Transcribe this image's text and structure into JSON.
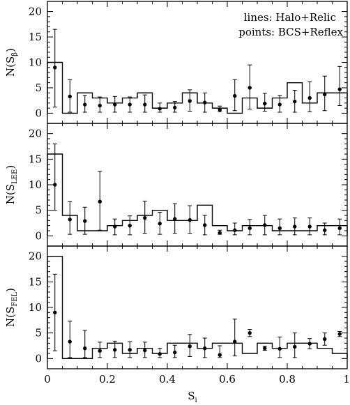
{
  "chart_data": {
    "type": "line",
    "xlabel_main": "S",
    "xlabel_sub": "i",
    "xlim": [
      0,
      1
    ],
    "x_ticks": [
      0,
      0.2,
      0.4,
      0.6,
      0.8,
      1
    ],
    "x_tick_labels": [
      "0",
      "0.2",
      "0.4",
      "0.6",
      "0.8",
      "1"
    ],
    "legend": {
      "lines_label": "lines: Halo+Relic",
      "points_label": "points: BCS+Reflex",
      "placement": "top-right of top panel"
    },
    "panels": [
      {
        "ylabel_main": "N(S",
        "ylabel_sub": "β",
        "ylabel_close": ")",
        "ylim": [
          -2,
          22
        ],
        "y_ticks": [
          0,
          5,
          10,
          15,
          20
        ],
        "y_tick_labels": [
          "0",
          "5",
          "10",
          "15",
          "20"
        ],
        "series": [
          {
            "name": "Halo+Relic",
            "kind": "step",
            "bin_edges": [
              0,
              0.05,
              0.1,
              0.15,
              0.2,
              0.25,
              0.3,
              0.35,
              0.4,
              0.45,
              0.5,
              0.55,
              0.6,
              0.65,
              0.7,
              0.75,
              0.8,
              0.85,
              0.9,
              0.95,
              1.0
            ],
            "values": [
              10,
              0,
              4,
              3,
              2,
              3,
              4,
              1,
              2,
              4,
              2,
              1,
              0,
              3,
              1,
              3,
              6,
              2,
              4,
              4
            ]
          },
          {
            "name": "BCS+Reflex",
            "kind": "points",
            "x": [
              0.025,
              0.075,
              0.125,
              0.175,
              0.225,
              0.275,
              0.325,
              0.375,
              0.425,
              0.475,
              0.525,
              0.575,
              0.625,
              0.675,
              0.725,
              0.775,
              0.825,
              0.875,
              0.925,
              0.975
            ],
            "y": [
              9.0,
              3.3,
              1.7,
              1.5,
              1.7,
              1.7,
              1.7,
              0.9,
              1.1,
              2.4,
              2.1,
              0.7,
              3.4,
              5.0,
              1.9,
              1.7,
              2.3,
              3.0,
              3.7,
              4.7
            ],
            "yerr_low": [
              1.2,
              0.2,
              0.2,
              0.2,
              0.2,
              0.2,
              0.2,
              0.2,
              0.2,
              0.4,
              0.2,
              0.3,
              0.5,
              0.8,
              0.4,
              0.2,
              0.2,
              0.3,
              0.5,
              1.5
            ],
            "yerr_high": [
              16.5,
              6.6,
              3.5,
              3.2,
              3.3,
              3.2,
              3.6,
              2.0,
              2.3,
              4.6,
              4.0,
              1.4,
              6.6,
              9.5,
              3.9,
              3.5,
              4.5,
              6.2,
              7.3,
              9.2
            ]
          }
        ]
      },
      {
        "ylabel_main": "N(S",
        "ylabel_sub": "LEE",
        "ylabel_close": ")",
        "ylim": [
          -2,
          22
        ],
        "y_ticks": [
          0,
          5,
          10,
          15,
          20
        ],
        "y_tick_labels": [
          "0",
          "5",
          "10",
          "15",
          "20"
        ],
        "series": [
          {
            "name": "Halo+Relic",
            "kind": "step",
            "bin_edges": [
              0,
              0.05,
              0.1,
              0.15,
              0.2,
              0.25,
              0.3,
              0.35,
              0.4,
              0.45,
              0.5,
              0.55,
              0.6,
              0.65,
              0.7,
              0.75,
              0.8,
              0.85,
              0.9,
              0.95,
              1.0
            ],
            "values": [
              16,
              4,
              1,
              1,
              2,
              3,
              4,
              5,
              3,
              3,
              6,
              2,
              1,
              2,
              2,
              1,
              1,
              1,
              2,
              2
            ]
          },
          {
            "name": "BCS+Reflex",
            "kind": "points",
            "x": [
              0.025,
              0.075,
              0.125,
              0.175,
              0.225,
              0.275,
              0.325,
              0.375,
              0.425,
              0.475,
              0.525,
              0.575,
              0.625,
              0.675,
              0.725,
              0.775,
              0.825,
              0.875,
              0.925,
              0.975
            ],
            "y": [
              10.0,
              3.2,
              2.9,
              6.7,
              1.8,
              2.0,
              3.5,
              2.4,
              3.3,
              3.1,
              2.1,
              0.6,
              1.1,
              1.5,
              2.1,
              1.5,
              1.8,
              1.8,
              1.1,
              1.5
            ],
            "yerr_low": [
              5.0,
              0.3,
              0.3,
              1.1,
              0.2,
              0.2,
              0.5,
              0.3,
              0.5,
              0.5,
              0.2,
              0.3,
              0.2,
              0.2,
              0.2,
              0.2,
              0.2,
              0.2,
              0.2,
              0.2
            ],
            "yerr_high": [
              18.0,
              6.7,
              5.6,
              12.6,
              3.3,
              3.9,
              6.8,
              4.6,
              6.3,
              5.9,
              4.0,
              1.1,
              2.5,
              3.2,
              4.0,
              3.3,
              3.5,
              3.5,
              2.5,
              3.3
            ]
          }
        ]
      },
      {
        "ylabel_main": "N(S",
        "ylabel_sub": "FEL",
        "ylabel_close": ")",
        "ylim": [
          -2,
          22
        ],
        "y_ticks": [
          0,
          5,
          10,
          15,
          20
        ],
        "y_tick_labels": [
          "0",
          "5",
          "10",
          "15",
          "20"
        ],
        "series": [
          {
            "name": "Halo+Relic",
            "kind": "step",
            "bin_edges": [
              0,
              0.05,
              0.1,
              0.15,
              0.2,
              0.25,
              0.3,
              0.35,
              0.4,
              0.45,
              0.5,
              0.55,
              0.6,
              0.65,
              0.7,
              0.75,
              0.8,
              0.85,
              0.9,
              0.95,
              1.0
            ],
            "values": [
              20,
              0,
              0,
              2,
              3,
              1,
              2,
              1,
              3,
              3,
              2,
              3,
              3,
              1,
              3,
              2,
              3,
              3,
              2,
              1
            ]
          },
          {
            "name": "BCS+Reflex",
            "kind": "points",
            "x": [
              0.025,
              0.075,
              0.125,
              0.175,
              0.225,
              0.275,
              0.325,
              0.375,
              0.425,
              0.475,
              0.525,
              0.575,
              0.625,
              0.675,
              0.725,
              0.775,
              0.825,
              0.875,
              0.925,
              0.975
            ],
            "y": [
              9.0,
              3.3,
              2.0,
              1.5,
              1.7,
              1.7,
              1.6,
              0.9,
              1.2,
              2.4,
              2.0,
              0.7,
              3.3,
              5.0,
              2.0,
              1.9,
              2.3,
              2.9,
              3.8,
              4.8
            ],
            "yerr_low": [
              1.5,
              0.2,
              0.2,
              0.2,
              0.2,
              0.2,
              0.2,
              0.2,
              0.2,
              0.4,
              0.2,
              0.2,
              0.5,
              4.3,
              1.6,
              0.2,
              0.2,
              1.9,
              2.6,
              4.3
            ],
            "yerr_high": [
              16.5,
              7.3,
              5.5,
              3.2,
              3.4,
              3.3,
              3.2,
              2.0,
              2.6,
              4.7,
              4.0,
              2.5,
              7.7,
              5.7,
              2.4,
              4.2,
              5.0,
              3.9,
              5.0,
              5.3
            ]
          }
        ]
      }
    ]
  }
}
